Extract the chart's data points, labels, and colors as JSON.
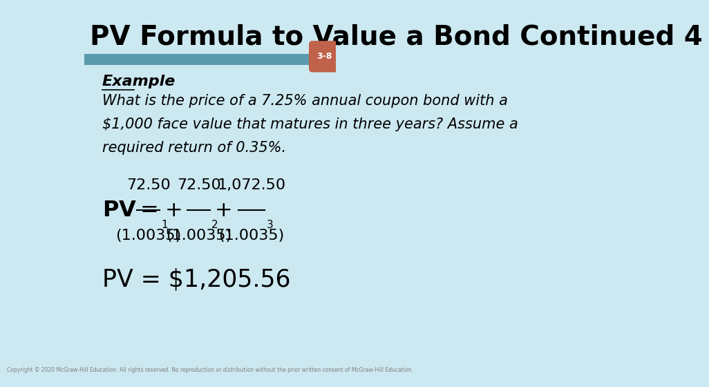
{
  "title": "PV Formula to Value a Bond Continued 4",
  "slide_num": "3-8",
  "bg_color": "#cce8f0",
  "bar_color": "#5b9aad",
  "badge_color": "#c0614a",
  "badge_text_color": "#ffffff",
  "title_color": "#000000",
  "title_fontsize": 28,
  "example_label": "Example",
  "body_text_line1": "What is the price of a 7.25% annual coupon bond with a",
  "body_text_line2": "$1,000 face value that matures in three years? Assume a",
  "body_text_line3": "required return of 0.35%.",
  "formula_result": "PV = $1,205.56",
  "copyright": "Copyright © 2020 McGraw-Hill Education. All rights reserved. No reproduction or distribution without the prior written consent of McGraw-Hill Education.",
  "body_fontsize": 15,
  "formula_fontsize": 18,
  "result_fontsize": 22
}
